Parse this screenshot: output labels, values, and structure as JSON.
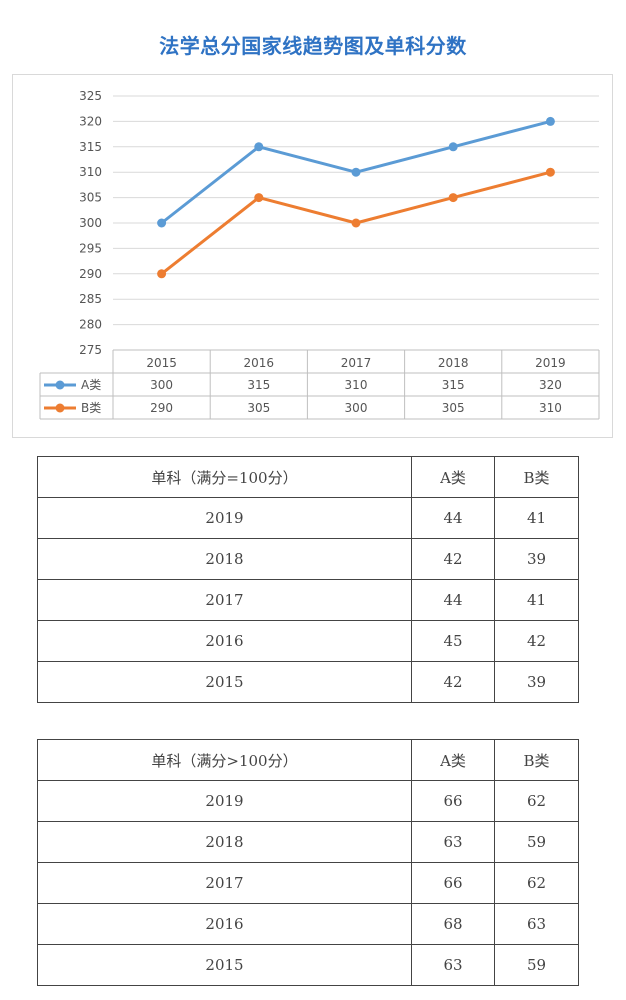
{
  "title": "法学总分国家线趋势图及单科分数",
  "chart_data": {
    "type": "line",
    "categories": [
      "2015",
      "2016",
      "2017",
      "2018",
      "2019"
    ],
    "series": [
      {
        "name": "A类",
        "values": [
          300,
          315,
          310,
          315,
          320
        ],
        "color": "#5b9bd5"
      },
      {
        "name": "B类",
        "values": [
          290,
          305,
          300,
          305,
          310
        ],
        "color": "#ed7d31"
      }
    ],
    "ylim": [
      275,
      325
    ],
    "yticks": [
      275,
      280,
      285,
      290,
      295,
      300,
      305,
      310,
      315,
      320,
      325
    ],
    "grid": true,
    "legend": "data-table-below"
  },
  "tables": [
    {
      "header": [
        "单科（满分=100分）",
        "A类",
        "B类"
      ],
      "rows": [
        [
          "2019",
          "44",
          "41"
        ],
        [
          "2018",
          "42",
          "39"
        ],
        [
          "2017",
          "44",
          "41"
        ],
        [
          "2016",
          "45",
          "42"
        ],
        [
          "2015",
          "42",
          "39"
        ]
      ]
    },
    {
      "header": [
        "单科（满分>100分）",
        "A类",
        "B类"
      ],
      "rows": [
        [
          "2019",
          "66",
          "62"
        ],
        [
          "2018",
          "63",
          "59"
        ],
        [
          "2017",
          "66",
          "62"
        ],
        [
          "2016",
          "68",
          "63"
        ],
        [
          "2015",
          "63",
          "59"
        ]
      ]
    }
  ]
}
